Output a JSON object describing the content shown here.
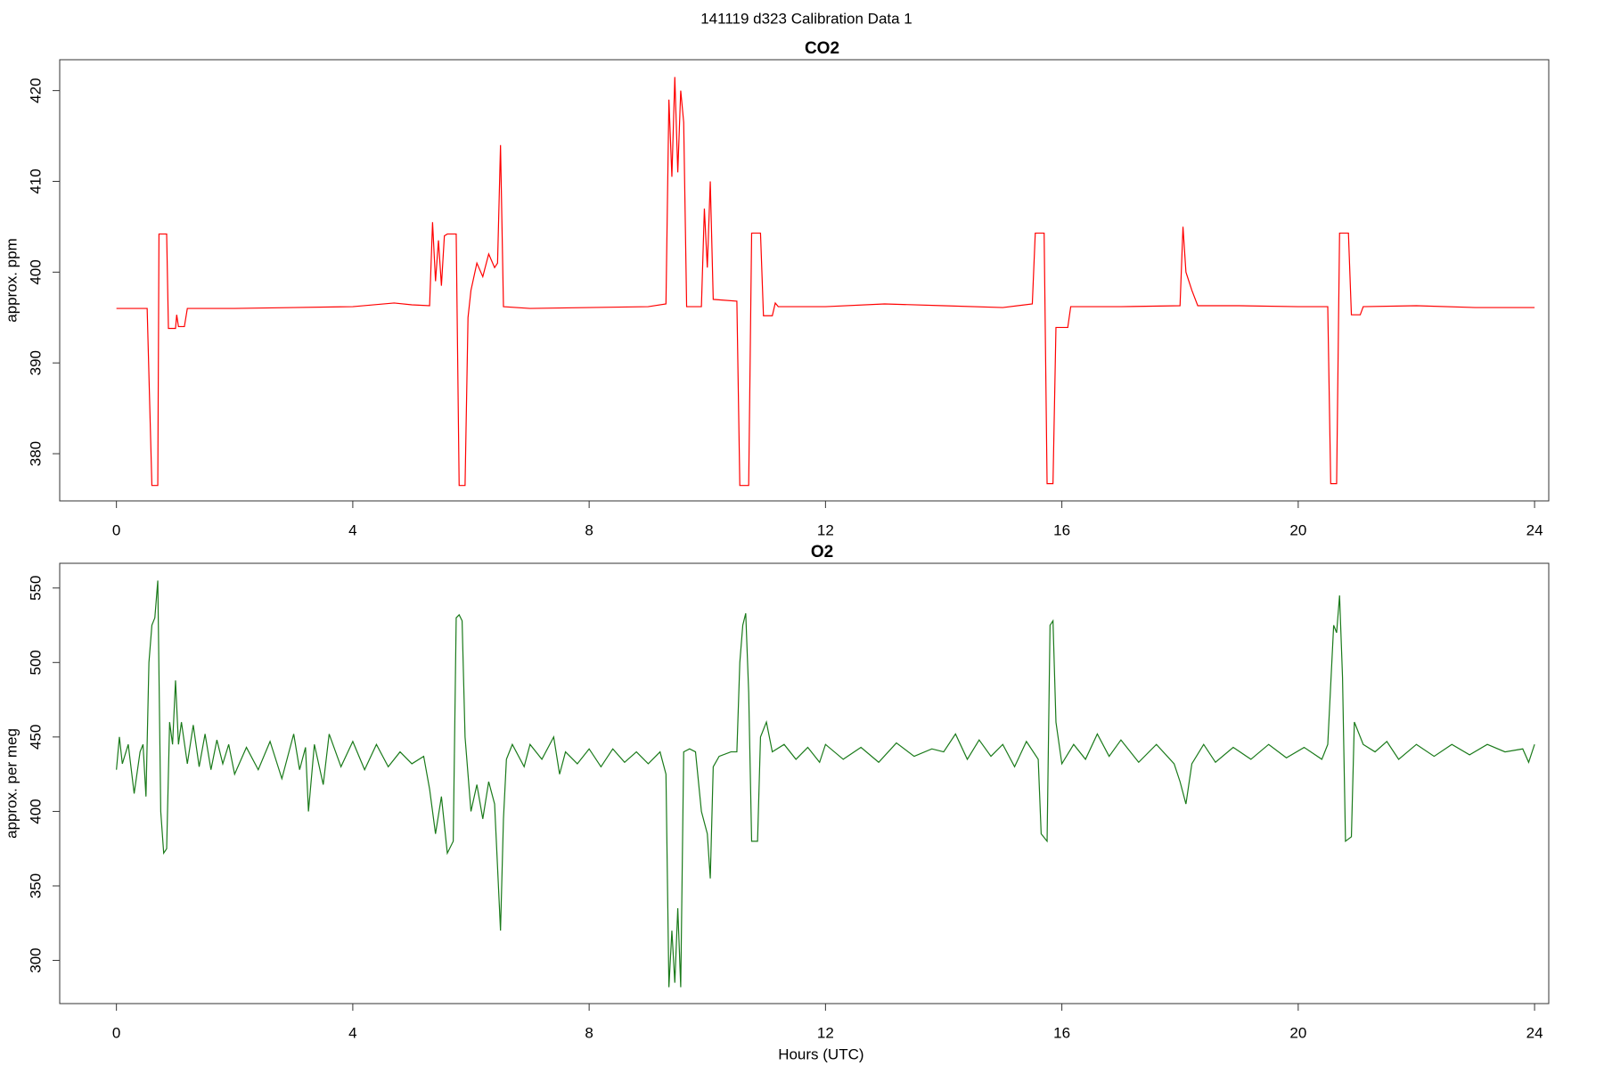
{
  "title": "141119   d323   Calibration Data 1",
  "chart_data": [
    {
      "type": "line",
      "title": "CO2",
      "y_label": "approx. ppm",
      "color": "#ff0000",
      "xlim": [
        -0.96,
        24.24
      ],
      "xticks": [
        0,
        4,
        8,
        12,
        16,
        20,
        24
      ],
      "ylim": [
        374.8,
        423.4
      ],
      "yticks": [
        380,
        390,
        400,
        410,
        420
      ],
      "x": [
        0,
        0.5,
        0.52,
        0.6,
        0.7,
        0.72,
        0.85,
        0.88,
        1.0,
        1.02,
        1.05,
        1.15,
        1.2,
        2,
        3,
        4,
        4.7,
        5,
        5.3,
        5.35,
        5.4,
        5.45,
        5.5,
        5.55,
        5.6,
        5.75,
        5.8,
        5.9,
        5.95,
        6.0,
        6.1,
        6.2,
        6.3,
        6.4,
        6.45,
        6.5,
        6.55,
        7,
        8,
        9,
        9.3,
        9.35,
        9.4,
        9.45,
        9.5,
        9.55,
        9.6,
        9.65,
        9.9,
        9.95,
        10.0,
        10.05,
        10.1,
        10.5,
        10.55,
        10.7,
        10.75,
        10.9,
        10.95,
        11.1,
        11.15,
        11.2,
        12,
        13,
        14,
        15,
        15.5,
        15.55,
        15.7,
        15.75,
        15.85,
        15.9,
        16.1,
        16.15,
        17,
        18,
        18.05,
        18.1,
        18.2,
        18.3,
        19,
        20,
        20.5,
        20.55,
        20.65,
        20.7,
        20.85,
        20.9,
        21.05,
        21.1,
        22,
        23,
        24
      ],
      "values": [
        396,
        396,
        396,
        376.5,
        376.5,
        404.2,
        404.2,
        393.8,
        393.8,
        395.3,
        394,
        394,
        396,
        396,
        396.1,
        396.2,
        396.6,
        396.4,
        396.3,
        405.5,
        399,
        403.5,
        398.5,
        404,
        404.2,
        404.2,
        376.5,
        376.5,
        395,
        398,
        401,
        399.5,
        402,
        400.5,
        401,
        414,
        396.2,
        396,
        396.1,
        396.2,
        396.5,
        419,
        410.5,
        421.5,
        411,
        420,
        416.5,
        396.2,
        396.2,
        407,
        400.5,
        410,
        397,
        396.8,
        376.5,
        376.5,
        404.3,
        404.3,
        395.2,
        395.2,
        396.6,
        396.2,
        396.2,
        396.5,
        396.3,
        396.1,
        396.5,
        404.3,
        404.3,
        376.7,
        376.7,
        393.9,
        393.9,
        396.2,
        396.2,
        396.3,
        405,
        400,
        398,
        396.3,
        396.3,
        396.2,
        396.2,
        376.7,
        376.7,
        404.3,
        404.3,
        395.3,
        395.3,
        396.2,
        396.3,
        396.1,
        396.1
      ]
    },
    {
      "type": "line",
      "title": "O2",
      "y_label": "approx. per meg",
      "x_label": "Hours (UTC)",
      "color": "#1a7a1a",
      "xlim": [
        -0.96,
        24.24
      ],
      "xticks": [
        0,
        4,
        8,
        12,
        16,
        20,
        24
      ],
      "ylim": [
        271,
        566.6
      ],
      "yticks": [
        300,
        350,
        400,
        450,
        500,
        550
      ],
      "x": [
        0,
        0.05,
        0.1,
        0.2,
        0.3,
        0.4,
        0.45,
        0.5,
        0.55,
        0.6,
        0.65,
        0.7,
        0.75,
        0.8,
        0.85,
        0.9,
        0.95,
        1.0,
        1.05,
        1.1,
        1.2,
        1.3,
        1.4,
        1.5,
        1.6,
        1.7,
        1.8,
        1.9,
        2.0,
        2.2,
        2.4,
        2.6,
        2.8,
        3.0,
        3.1,
        3.2,
        3.25,
        3.35,
        3.5,
        3.6,
        3.8,
        4.0,
        4.2,
        4.4,
        4.6,
        4.8,
        5.0,
        5.2,
        5.3,
        5.4,
        5.5,
        5.6,
        5.7,
        5.75,
        5.8,
        5.85,
        5.9,
        6.0,
        6.1,
        6.2,
        6.3,
        6.4,
        6.5,
        6.55,
        6.6,
        6.7,
        6.9,
        7.0,
        7.2,
        7.4,
        7.5,
        7.6,
        7.8,
        8.0,
        8.2,
        8.4,
        8.6,
        8.8,
        9.0,
        9.2,
        9.3,
        9.35,
        9.4,
        9.45,
        9.5,
        9.55,
        9.6,
        9.7,
        9.8,
        9.9,
        10.0,
        10.05,
        10.1,
        10.2,
        10.4,
        10.5,
        10.55,
        10.6,
        10.65,
        10.7,
        10.75,
        10.85,
        10.9,
        11.0,
        11.1,
        11.3,
        11.5,
        11.7,
        11.9,
        12.0,
        12.3,
        12.6,
        12.9,
        13.2,
        13.5,
        13.8,
        14.0,
        14.2,
        14.4,
        14.6,
        14.8,
        15.0,
        15.2,
        15.4,
        15.6,
        15.65,
        15.75,
        15.8,
        15.85,
        15.9,
        16.0,
        16.2,
        16.4,
        16.6,
        16.8,
        17.0,
        17.3,
        17.6,
        17.9,
        18.0,
        18.1,
        18.2,
        18.4,
        18.6,
        18.9,
        19.2,
        19.5,
        19.8,
        20.1,
        20.4,
        20.5,
        20.6,
        20.65,
        20.7,
        20.75,
        20.8,
        20.9,
        20.95,
        21.1,
        21.3,
        21.5,
        21.7,
        22,
        22.3,
        22.6,
        22.9,
        23.2,
        23.5,
        23.8,
        23.9,
        24
      ],
      "values": [
        428,
        450,
        432,
        445,
        412,
        440,
        445,
        410,
        500,
        525,
        530,
        555,
        400,
        372,
        375,
        460,
        445,
        488,
        445,
        460,
        432,
        458,
        430,
        452,
        428,
        448,
        432,
        445,
        425,
        443,
        428,
        447,
        422,
        452,
        428,
        443,
        400,
        445,
        418,
        452,
        430,
        447,
        428,
        445,
        430,
        440,
        432,
        437,
        415,
        385,
        410,
        372,
        380,
        530,
        532,
        528,
        450,
        400,
        418,
        395,
        420,
        405,
        320,
        395,
        435,
        445,
        430,
        445,
        435,
        450,
        425,
        440,
        432,
        442,
        430,
        442,
        433,
        440,
        432,
        440,
        425,
        282,
        320,
        285,
        335,
        282,
        440,
        442,
        440,
        400,
        385,
        355,
        430,
        437,
        440,
        440,
        500,
        525,
        533,
        480,
        380,
        380,
        450,
        460,
        440,
        445,
        435,
        443,
        433,
        445,
        435,
        443,
        433,
        446,
        437,
        442,
        440,
        452,
        435,
        448,
        437,
        445,
        430,
        447,
        435,
        385,
        380,
        525,
        528,
        460,
        432,
        445,
        435,
        452,
        437,
        448,
        433,
        445,
        432,
        420,
        405,
        432,
        445,
        433,
        443,
        435,
        445,
        436,
        443,
        435,
        445,
        525,
        520,
        545,
        490,
        380,
        383,
        460,
        445,
        440,
        447,
        435,
        445,
        437,
        445,
        438,
        445,
        440,
        442,
        433,
        445
      ]
    }
  ]
}
